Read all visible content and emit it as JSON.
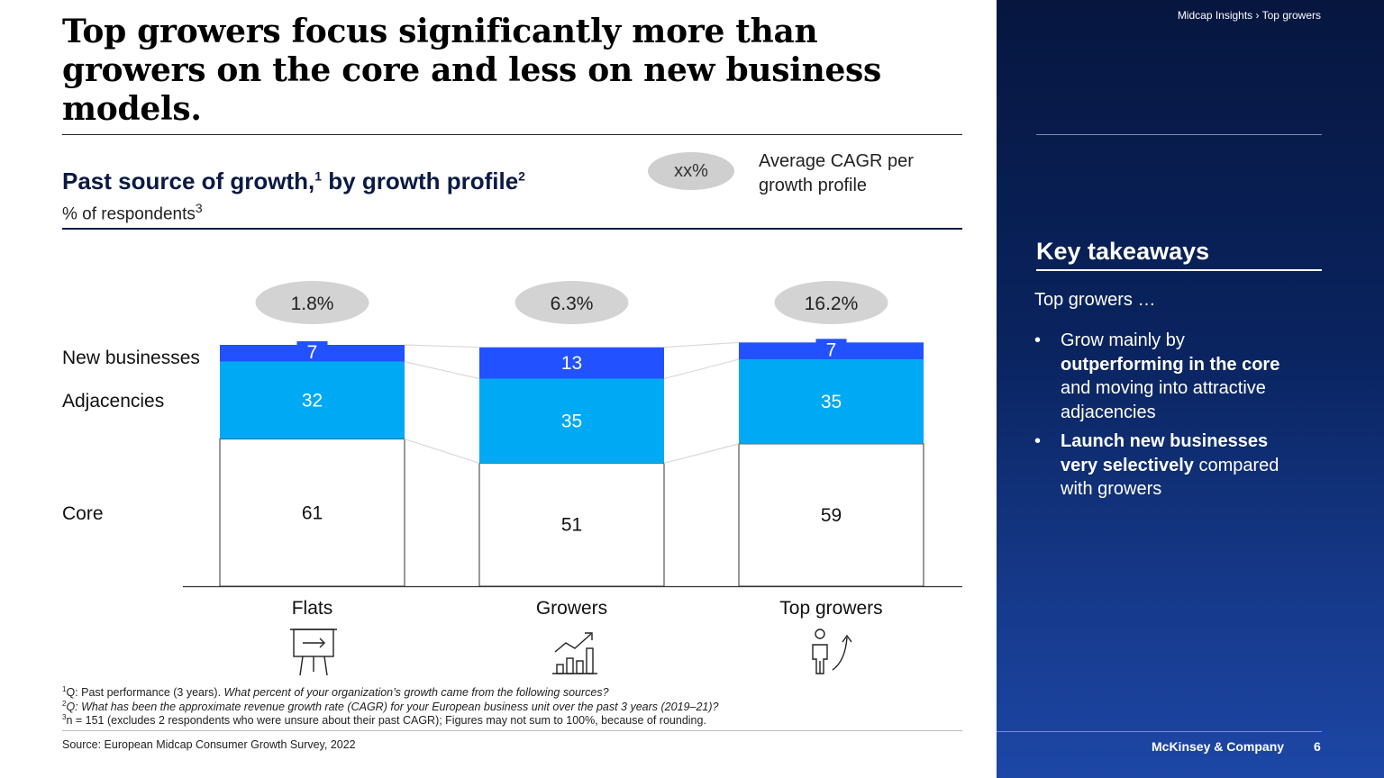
{
  "slide": {
    "title": "Top growers focus significantly more than growers on the core and less on new business models.",
    "breadcrumb": "Midcap Insights › Top growers",
    "company": "McKinsey & Company",
    "page_number": "6"
  },
  "chart_header": {
    "title": "Past source of growth,",
    "title_sup1": "1",
    "title_mid": " by growth profile",
    "title_sup2": "2",
    "subtitle": "% of respondents",
    "subtitle_sup": "3",
    "legend_oval": "xx%",
    "legend_text": "Average CAGR per growth profile"
  },
  "chart_data": {
    "type": "bar",
    "stacked": true,
    "title": "Past source of growth, by growth profile",
    "ylabel": "% of respondents",
    "categories": [
      "Flats",
      "Growers",
      "Top growers"
    ],
    "cagr": [
      "1.8%",
      "6.3%",
      "16.2%"
    ],
    "series": [
      {
        "name": "Core",
        "values": [
          61,
          51,
          59
        ],
        "color": "#ffffff"
      },
      {
        "name": "Adjacencies",
        "values": [
          32,
          35,
          35
        ],
        "color": "#00a9f4"
      },
      {
        "name": "New businesses",
        "values": [
          7,
          13,
          7
        ],
        "color": "#2251ff"
      }
    ],
    "ylim": [
      0,
      100
    ]
  },
  "row_labels": {
    "new_businesses": "New businesses",
    "adjacencies": "Adjacencies",
    "core": "Core"
  },
  "icons": [
    "presentation-board-icon",
    "bar-chart-growth-icon",
    "person-growth-arrow-icon"
  ],
  "footnotes": {
    "f1_num": "1",
    "f1_plain": "Q: Past performance (3 years). ",
    "f1_italic": "What percent of your organization’s growth came from the following sources?",
    "f2_num": "2",
    "f2_italic": "Q: What has been the approximate revenue growth rate (CAGR) for your European business unit over the past 3 years (2019–21)?",
    "f3_num": "3",
    "f3_plain": "n = 151 (excludes 2 respondents who were unsure about their past CAGR); Figures may not sum to 100%, because of rounding.",
    "source": "Source: European Midcap Consumer Growth Survey, 2022"
  },
  "sidebar": {
    "heading": "Key takeaways",
    "lead": "Top growers …",
    "bullet1_pre": "Grow mainly by ",
    "bullet1_bold": "outperforming in the core",
    "bullet1_post": " and moving into attractive adjacencies",
    "bullet2_bold": "Launch new businesses very selectively",
    "bullet2_post": " compared with growers"
  },
  "colors": {
    "new_businesses": "#2251ff",
    "adjacencies": "#00a9f4",
    "navy": "#0b1a44"
  }
}
